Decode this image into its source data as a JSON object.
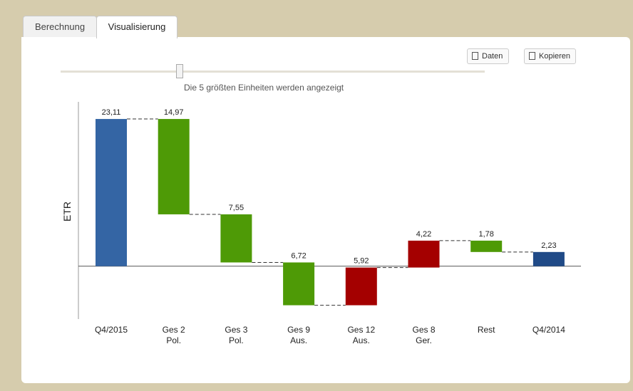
{
  "tabs": [
    "Berechnung",
    "Visualisierung"
  ],
  "buttons": [
    "Daten",
    "Kopieren"
  ],
  "slider_caption": "Die 5 größten Einheiten werden angezeigt",
  "chart_data": {
    "type": "waterfall",
    "ylabel": "ETR",
    "categories": [
      "Q4/2015",
      "Ges 2 Pol.",
      "Ges 3 Pol.",
      "Ges 9 Aus.",
      "Ges 12 Aus.",
      "Ges 8 Ger.",
      "Rest",
      "Q4/2014"
    ],
    "values": [
      23.11,
      -14.97,
      -7.55,
      -6.72,
      5.92,
      4.22,
      -1.78,
      2.23
    ],
    "value_labels": [
      "23,11",
      "14,97",
      "7,55",
      "6,72",
      "5,92",
      "4,22",
      "1,78",
      "2,23"
    ],
    "colors": [
      "#3465a4",
      "#4e9a06",
      "#4e9a06",
      "#4e9a06",
      "#a40000",
      "#a40000",
      "#4e9a06",
      "#204a87"
    ],
    "ylim": [
      -8.3,
      25.8
    ]
  }
}
